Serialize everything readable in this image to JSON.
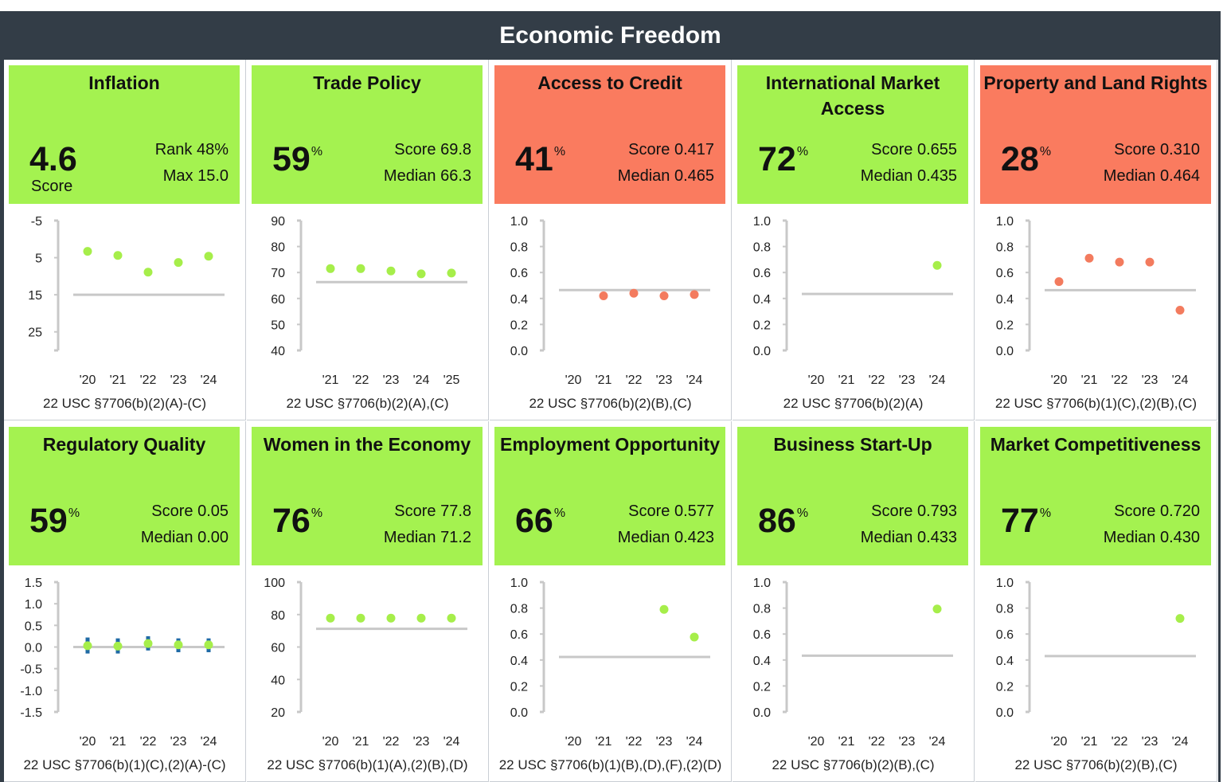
{
  "title": "Economic Freedom",
  "colors": {
    "green": "#a4f250",
    "red": "#fa7b5f",
    "point_green": "#a6ee4a",
    "point_red": "#f37b5e",
    "median_line": "#c8c8c8",
    "error_bar": "#1f6aa5",
    "header_bg": "#333d47"
  },
  "chart_data": [
    {
      "type": "scatter",
      "panel": {
        "title": "Inflation",
        "status": "green",
        "value": "4.6",
        "unit": "",
        "value_label": "Score",
        "stat1": "Rank 48%",
        "stat2": "Max 15.0",
        "citation": "22 USC §7706(b)(2)(A)-(C)"
      },
      "ylim": [
        -5,
        30
      ],
      "inverted": true,
      "yticks": [
        "-5",
        "5",
        "15",
        "25"
      ],
      "ytick_values": [
        -5,
        5,
        15,
        25
      ],
      "categories": [
        "'20",
        "'21",
        "'22",
        "'23",
        "'24"
      ],
      "values": [
        3.3,
        4.4,
        8.9,
        6.3,
        4.6
      ],
      "median": 15.0
    },
    {
      "type": "scatter",
      "panel": {
        "title": "Trade Policy",
        "status": "green",
        "value": "59",
        "unit": "%",
        "stat1": "Score 69.8",
        "stat2": "Median 66.3",
        "citation": "22 USC §7706(b)(2)(A),(C)"
      },
      "ylim": [
        40,
        90
      ],
      "yticks": [
        "90",
        "80",
        "70",
        "60",
        "50",
        "40"
      ],
      "ytick_values": [
        90,
        80,
        70,
        60,
        50,
        40
      ],
      "categories": [
        "'21",
        "'22",
        "'23",
        "'24",
        "'25"
      ],
      "values": [
        71.5,
        71.5,
        70.6,
        69.5,
        69.8
      ],
      "median": 66.3
    },
    {
      "type": "scatter",
      "panel": {
        "title": "Access to Credit",
        "status": "red",
        "value": "41",
        "unit": "%",
        "stat1": "Score 0.417",
        "stat2": "Median 0.465",
        "citation": "22 USC §7706(b)(2)(B),(C)"
      },
      "ylim": [
        0,
        1
      ],
      "yticks": [
        "1.0",
        "0.8",
        "0.6",
        "0.4",
        "0.2",
        "0.0"
      ],
      "ytick_values": [
        1,
        0.8,
        0.6,
        0.4,
        0.2,
        0
      ],
      "categories": [
        "'20",
        "'21",
        "'22",
        "'23",
        "'24"
      ],
      "values": [
        null,
        0.42,
        0.44,
        0.42,
        0.43
      ],
      "median": 0.465
    },
    {
      "type": "scatter",
      "panel": {
        "title": "International Market Access",
        "status": "green",
        "value": "72",
        "unit": "%",
        "stat1": "Score 0.655",
        "stat2": "Median 0.435",
        "citation": "22 USC §7706(b)(2)(A)"
      },
      "ylim": [
        0,
        1
      ],
      "yticks": [
        "1.0",
        "0.8",
        "0.6",
        "0.4",
        "0.2",
        "0.0"
      ],
      "ytick_values": [
        1,
        0.8,
        0.6,
        0.4,
        0.2,
        0
      ],
      "categories": [
        "'20",
        "'21",
        "'22",
        "'23",
        "'24"
      ],
      "values": [
        null,
        null,
        null,
        null,
        0.655
      ],
      "median": 0.435
    },
    {
      "type": "scatter",
      "panel": {
        "title": "Property and Land Rights",
        "status": "red",
        "value": "28",
        "unit": "%",
        "stat1": "Score 0.310",
        "stat2": "Median 0.464",
        "citation": "22 USC §7706(b)(1)(C),(2)(B),(C)"
      },
      "ylim": [
        0,
        1
      ],
      "yticks": [
        "1.0",
        "0.8",
        "0.6",
        "0.4",
        "0.2",
        "0.0"
      ],
      "ytick_values": [
        1,
        0.8,
        0.6,
        0.4,
        0.2,
        0
      ],
      "categories": [
        "'20",
        "'21",
        "'22",
        "'23",
        "'24"
      ],
      "values": [
        0.53,
        0.71,
        0.68,
        0.68,
        0.31
      ],
      "median": 0.464
    },
    {
      "type": "scatter",
      "panel": {
        "title": "Regulatory Quality",
        "status": "green",
        "value": "59",
        "unit": "%",
        "stat1": "Score 0.05",
        "stat2": "Median 0.00",
        "citation": "22 USC §7706(b)(1)(C),(2)(A)-(C)"
      },
      "ylim": [
        -1.5,
        1.5
      ],
      "yticks": [
        "1.5",
        "1.0",
        "0.5",
        "0.0",
        "-0.5",
        "-1.0",
        "-1.5"
      ],
      "ytick_values": [
        1.5,
        1,
        0.5,
        0,
        -0.5,
        -1,
        -1.5
      ],
      "categories": [
        "'20",
        "'21",
        "'22",
        "'23",
        "'24"
      ],
      "values": [
        0.03,
        0.02,
        0.08,
        0.05,
        0.05
      ],
      "error_low": [
        -0.15,
        -0.15,
        -0.08,
        -0.12,
        -0.12
      ],
      "error_high": [
        0.22,
        0.2,
        0.25,
        0.2,
        0.2
      ],
      "median": 0.0
    },
    {
      "type": "scatter",
      "panel": {
        "title": "Women in the Economy",
        "status": "green",
        "value": "76",
        "unit": "%",
        "stat1": "Score 77.8",
        "stat2": "Median 71.2",
        "citation": "22 USC §7706(b)(1)(A),(2)(B),(D)"
      },
      "ylim": [
        20,
        100
      ],
      "yticks": [
        "100",
        "80",
        "60",
        "40",
        "20"
      ],
      "ytick_values": [
        100,
        80,
        60,
        40,
        20
      ],
      "categories": [
        "'20",
        "'21",
        "'22",
        "'23",
        "'24"
      ],
      "values": [
        77.8,
        77.8,
        77.8,
        77.8,
        77.8
      ],
      "median": 71.2
    },
    {
      "type": "scatter",
      "panel": {
        "title": "Employment Opportunity",
        "status": "green",
        "value": "66",
        "unit": "%",
        "stat1": "Score 0.577",
        "stat2": "Median 0.423",
        "citation": "22 USC §7706(b)(1)(B),(D),(F),(2)(D)"
      },
      "ylim": [
        0,
        1
      ],
      "yticks": [
        "1.0",
        "0.8",
        "0.6",
        "0.4",
        "0.2",
        "0.0"
      ],
      "ytick_values": [
        1,
        0.8,
        0.6,
        0.4,
        0.2,
        0
      ],
      "categories": [
        "'20",
        "'21",
        "'22",
        "'23",
        "'24"
      ],
      "values": [
        null,
        null,
        null,
        0.79,
        0.577
      ],
      "median": 0.423
    },
    {
      "type": "scatter",
      "panel": {
        "title": "Business Start-Up",
        "status": "green",
        "value": "86",
        "unit": "%",
        "stat1": "Score 0.793",
        "stat2": "Median 0.433",
        "citation": "22 USC §7706(b)(2)(B),(C)"
      },
      "ylim": [
        0,
        1
      ],
      "yticks": [
        "1.0",
        "0.8",
        "0.6",
        "0.4",
        "0.2",
        "0.0"
      ],
      "ytick_values": [
        1,
        0.8,
        0.6,
        0.4,
        0.2,
        0
      ],
      "categories": [
        "'20",
        "'21",
        "'22",
        "'23",
        "'24"
      ],
      "values": [
        null,
        null,
        null,
        null,
        0.793
      ],
      "median": 0.433
    },
    {
      "type": "scatter",
      "panel": {
        "title": "Market Competitiveness",
        "status": "green",
        "value": "77",
        "unit": "%",
        "stat1": "Score 0.720",
        "stat2": "Median 0.430",
        "citation": "22 USC §7706(b)(2)(B),(C)"
      },
      "ylim": [
        0,
        1
      ],
      "yticks": [
        "1.0",
        "0.8",
        "0.6",
        "0.4",
        "0.2",
        "0.0"
      ],
      "ytick_values": [
        1,
        0.8,
        0.6,
        0.4,
        0.2,
        0
      ],
      "categories": [
        "'20",
        "'21",
        "'22",
        "'23",
        "'24"
      ],
      "values": [
        null,
        null,
        null,
        null,
        0.72
      ],
      "median": 0.43
    }
  ]
}
